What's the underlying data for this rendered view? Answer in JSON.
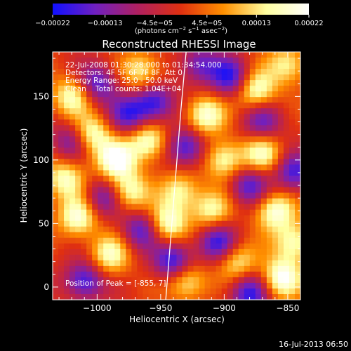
{
  "chart_data": {
    "type": "heatmap",
    "title": "Reconstructed RHESSI Image",
    "xlabel": "Heliocentric X (arcsec)",
    "ylabel": "Heliocentric Y (arcsec)",
    "xlim": [
      -1035,
      -840
    ],
    "ylim": [
      -10,
      185
    ],
    "x_ticks": [
      {
        "value": -1000,
        "label": "−1000"
      },
      {
        "value": -950,
        "label": "−950"
      },
      {
        "value": -900,
        "label": "−900"
      },
      {
        "value": -850,
        "label": "−850"
      }
    ],
    "y_ticks": [
      {
        "value": 0,
        "label": "0"
      },
      {
        "value": 50,
        "label": "50"
      },
      {
        "value": 100,
        "label": "100"
      },
      {
        "value": 150,
        "label": "150"
      }
    ],
    "colorbar": {
      "range": [
        -0.00022,
        0.00022
      ],
      "ticks": [
        {
          "value": -0.00022,
          "label": "−0.00022"
        },
        {
          "value": -0.00013,
          "label": "−0.00013"
        },
        {
          "value": -4.5e-05,
          "label": "−4.5e−05"
        },
        {
          "value": 4.5e-05,
          "label": "4.5e−05"
        },
        {
          "value": 0.00013,
          "label": "0.00013"
        },
        {
          "value": 0.00022,
          "label": "0.00022"
        }
      ],
      "unit_parts": [
        "(photons cm",
        "−2",
        " s",
        "−1",
        " asec",
        "−2",
        ")"
      ],
      "colors": [
        "#1010ff",
        "#7020c0",
        "#b02060",
        "#e03010",
        "#ff9000",
        "#ffffa0",
        "#ffffff"
      ]
    },
    "overlay_text": [
      "22-Jul-2008 01:30:28.000 to 01:34:54.000",
      "Detectors: 4F 5F 6F 7F 8F, Att 0",
      "Energy Range: 25.0 - 50.0 keV",
      "Clean    Total counts: 1.04E+04"
    ],
    "peak_text": "Position of Peak = [-855, 7]",
    "limb_curve": [
      [
        -946,
        -10
      ],
      [
        -942,
        40
      ],
      [
        -938,
        90
      ],
      [
        -934,
        140
      ],
      [
        -930,
        185
      ]
    ],
    "blobs": [
      {
        "x": -1020,
        "y": 150,
        "v": 0.8
      },
      {
        "x": -1005,
        "y": 120,
        "v": 0.9
      },
      {
        "x": -985,
        "y": 100,
        "v": 1.0
      },
      {
        "x": -965,
        "y": 170,
        "v": 0.7
      },
      {
        "x": -960,
        "y": 115,
        "v": 0.9
      },
      {
        "x": -975,
        "y": 75,
        "v": 0.8
      },
      {
        "x": -1015,
        "y": 55,
        "v": 0.9
      },
      {
        "x": -1025,
        "y": 85,
        "v": 0.8
      },
      {
        "x": -990,
        "y": 25,
        "v": 0.8
      },
      {
        "x": -945,
        "y": 50,
        "v": 0.9
      },
      {
        "x": -935,
        "y": 75,
        "v": 0.7
      },
      {
        "x": -930,
        "y": 5,
        "v": 0.8
      },
      {
        "x": -915,
        "y": 135,
        "v": 0.9
      },
      {
        "x": -910,
        "y": 60,
        "v": 0.7
      },
      {
        "x": -900,
        "y": 100,
        "v": 0.8
      },
      {
        "x": -890,
        "y": 20,
        "v": 0.7
      },
      {
        "x": -875,
        "y": 155,
        "v": 0.9
      },
      {
        "x": -870,
        "y": 105,
        "v": 0.8
      },
      {
        "x": -860,
        "y": 60,
        "v": 0.9
      },
      {
        "x": -855,
        "y": 7,
        "v": 1.0
      },
      {
        "x": -845,
        "y": 35,
        "v": 0.8
      },
      {
        "x": -850,
        "y": 175,
        "v": 0.7
      },
      {
        "x": -955,
        "y": 145,
        "v": -0.9
      },
      {
        "x": -1000,
        "y": 160,
        "v": -0.8
      },
      {
        "x": -975,
        "y": 135,
        "v": -0.8
      },
      {
        "x": -930,
        "y": 110,
        "v": -0.9
      },
      {
        "x": -940,
        "y": 20,
        "v": -1.0
      },
      {
        "x": -1010,
        "y": 5,
        "v": -0.9
      },
      {
        "x": -965,
        "y": 45,
        "v": -0.8
      },
      {
        "x": -905,
        "y": 35,
        "v": -0.9
      },
      {
        "x": -880,
        "y": 80,
        "v": -0.8
      },
      {
        "x": -895,
        "y": 165,
        "v": -0.9
      },
      {
        "x": -870,
        "y": 130,
        "v": -0.7
      },
      {
        "x": -1020,
        "y": 115,
        "v": -0.7
      },
      {
        "x": -845,
        "y": 90,
        "v": -0.8
      },
      {
        "x": -880,
        "y": -5,
        "v": -0.9
      },
      {
        "x": -995,
        "y": 70,
        "v": -0.7
      },
      {
        "x": -920,
        "y": 175,
        "v": -0.7
      }
    ]
  },
  "timestamp": "16-Jul-2013 06:50"
}
